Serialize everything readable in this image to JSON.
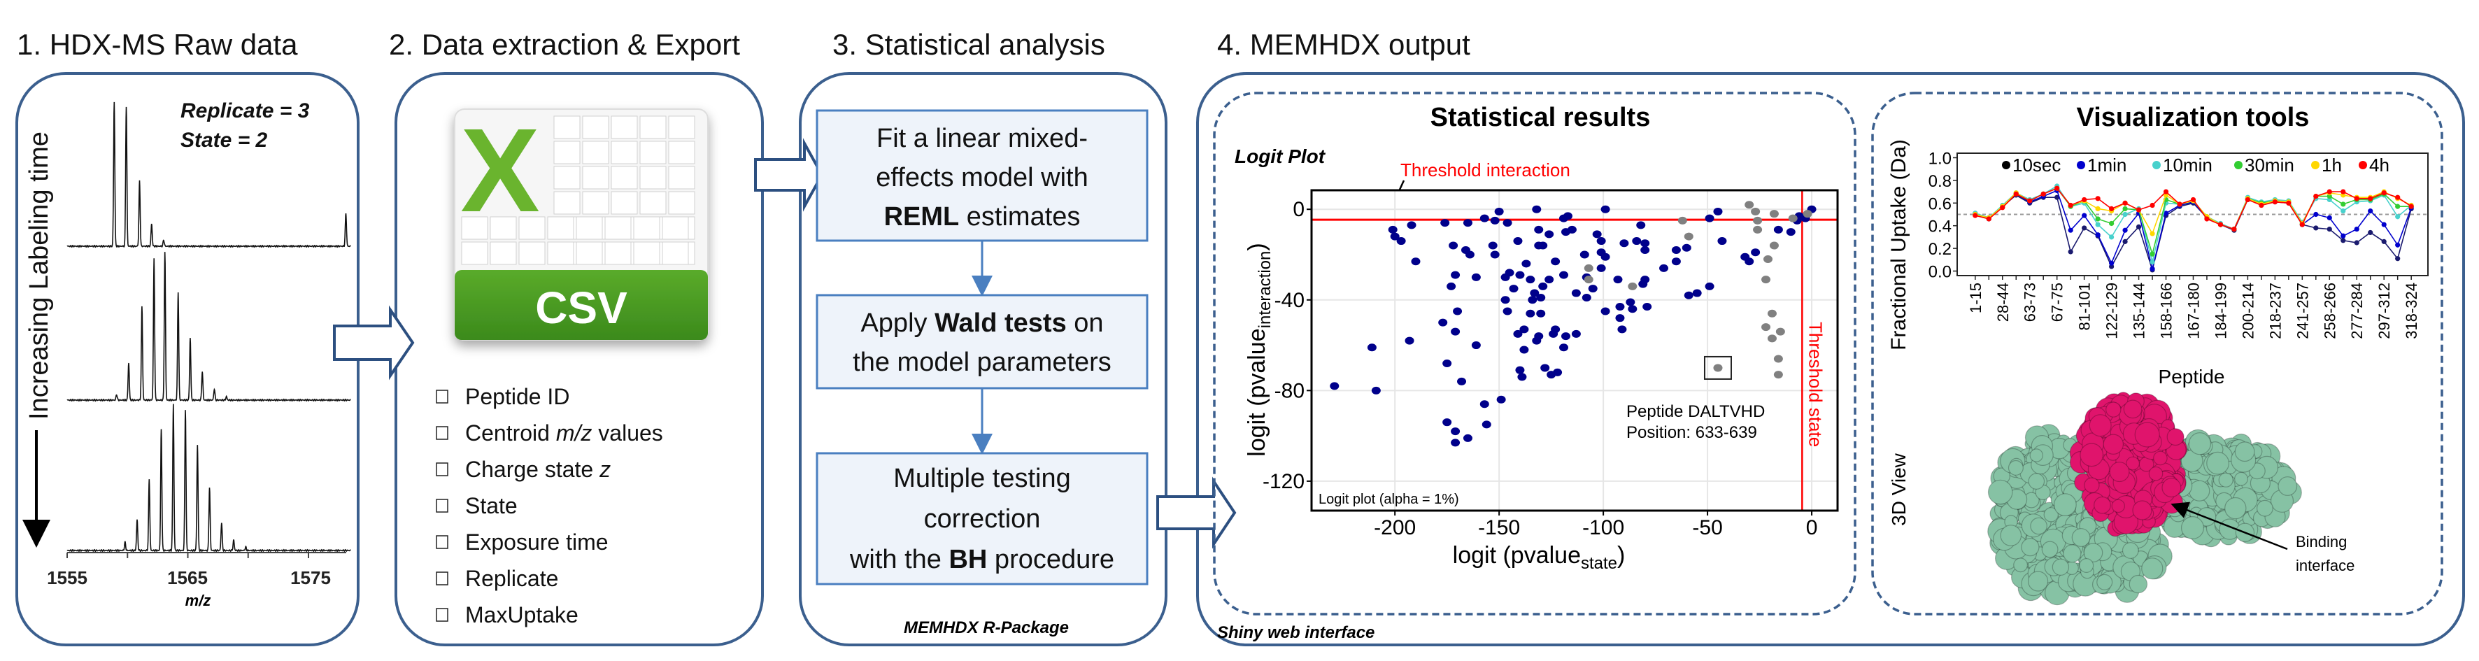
{
  "panel1": {
    "title": "1. HDX-MS Raw data",
    "replicate": "Replicate = 3",
    "state": "State = 2",
    "side_label": "Increasing Labeling time",
    "x_ticks": [
      "1555",
      "1565",
      "1575"
    ],
    "x_label": "m/z"
  },
  "panel2": {
    "title": "2. Data extraction & Export",
    "icon_label": "CSV",
    "icon_letter": "X",
    "items": [
      {
        "text": "Peptide ID"
      },
      {
        "text": "Centroid ",
        "em": "m/z",
        "tail": " values"
      },
      {
        "text": "Charge state ",
        "em": "z"
      },
      {
        "text": "State"
      },
      {
        "text": "Exposure time"
      },
      {
        "text": "Replicate"
      },
      {
        "text": "MaxUptake"
      }
    ]
  },
  "panel3": {
    "title": "3. Statistical analysis",
    "steps": [
      {
        "l1": "Fit a linear mixed-",
        "l2": "effects model with",
        "l3_bold": "REML",
        "l3": " estimates"
      },
      {
        "l1_pre": "Apply ",
        "l1_bold": "Wald tests",
        "l1_post": " on",
        "l2": "the model parameters"
      },
      {
        "l1": "Multiple testing",
        "l2": "correction",
        "l3_pre": "with the ",
        "l3_bold": "BH",
        "l3_post": " procedure"
      }
    ],
    "caption": "MEMHDX R-Package"
  },
  "panel4": {
    "title": "4. MEMHDX output",
    "caption": "Shiny web interface",
    "stats_title": "Statistical results",
    "viz_title": "Visualization tools",
    "view3d_label": "3D View",
    "binding_label_1": "Binding",
    "binding_label_2": "interface",
    "colors": {
      "protein": "#86c2a4",
      "interface": "#e0146c"
    }
  },
  "chart_data": [
    {
      "type": "scatter",
      "title": "Logit Plot",
      "xlabel": "logit (pvalue",
      "xlabel_sub": "state",
      "xlabel_end": ")",
      "ylabel": "logit (pvalue",
      "ylabel_sub": "interaction",
      "ylabel_end": ")",
      "xlim": [
        -240,
        12.4
      ],
      "ylim": [
        -133,
        8.4
      ],
      "x_ticks": [
        -200,
        -150,
        -100,
        -50,
        0
      ],
      "y_ticks": [
        0,
        -40,
        -80,
        -120
      ],
      "grid": true,
      "threshold_interaction": -4.6,
      "threshold_state": -4.6,
      "threshold_interaction_label": "Threshold interaction",
      "threshold_state_label": "Threshold state",
      "threshold_color": "#ff0000",
      "annotation_line1": "Peptide DALTVHD",
      "annotation_line2": "Position: 633-639",
      "annotated_point": [
        -45,
        -70
      ],
      "footnote": "Logit plot (alpha = 1%)",
      "series": [
        {
          "color": "#00008b",
          "points": [
            [
              -201,
              -9
            ],
            [
              -200,
              -12
            ],
            [
              -197,
              -14
            ],
            [
              -192,
              -7
            ],
            [
              -190,
              -23
            ],
            [
              -176,
              -6
            ],
            [
              -165,
              -6
            ],
            [
              -157,
              -4
            ],
            [
              -150,
              -1
            ],
            [
              -152,
              -5
            ],
            [
              -146,
              -6
            ],
            [
              -132,
              0
            ],
            [
              -119,
              -4
            ],
            [
              -117,
              -3
            ],
            [
              -99,
              0
            ],
            [
              -49,
              -4
            ],
            [
              -45,
              -1
            ],
            [
              -172,
              -16
            ],
            [
              -166,
              -18
            ],
            [
              -164,
              -20
            ],
            [
              -153,
              -16
            ],
            [
              -152,
              -20
            ],
            [
              -141,
              -14
            ],
            [
              -131,
              -9
            ],
            [
              -131,
              -16
            ],
            [
              -129,
              -16
            ],
            [
              -126,
              -11
            ],
            [
              -118,
              -10
            ],
            [
              -115,
              -9
            ],
            [
              -109,
              -20
            ],
            [
              -103,
              -11
            ],
            [
              -101,
              -14
            ],
            [
              -101,
              -19
            ],
            [
              -99,
              -21
            ],
            [
              -90,
              -15
            ],
            [
              -84,
              -14
            ],
            [
              -82,
              -7
            ],
            [
              -80,
              -15
            ],
            [
              -80,
              -18
            ],
            [
              -65,
              -18
            ],
            [
              -60,
              -17
            ],
            [
              -43,
              -14
            ],
            [
              -32,
              -21
            ],
            [
              -27,
              -19
            ],
            [
              -30,
              -23
            ],
            [
              -16,
              -9
            ],
            [
              -10,
              -10
            ],
            [
              -7,
              -5
            ],
            [
              -3,
              -4
            ],
            [
              0,
              0
            ],
            [
              -6,
              -3
            ],
            [
              -171,
              -29
            ],
            [
              -173,
              -34
            ],
            [
              -170,
              -45
            ],
            [
              -161,
              -30
            ],
            [
              -147,
              -30
            ],
            [
              -145,
              -28
            ],
            [
              -143,
              -35
            ],
            [
              -140,
              -29
            ],
            [
              -137,
              -24
            ],
            [
              -135,
              -31
            ],
            [
              -133,
              -37
            ],
            [
              -130,
              -39
            ],
            [
              -134,
              -40
            ],
            [
              -129,
              -34
            ],
            [
              -126,
              -31
            ],
            [
              -123,
              -23
            ],
            [
              -119,
              -29
            ],
            [
              -147,
              -40
            ],
            [
              -146,
              -45
            ],
            [
              -135,
              -46
            ],
            [
              -130,
              -46
            ],
            [
              -113,
              -37
            ],
            [
              -108,
              -39
            ],
            [
              -108,
              -30
            ],
            [
              -105,
              -35
            ],
            [
              -101,
              -26
            ],
            [
              -93,
              -31
            ],
            [
              -92,
              -43
            ],
            [
              -87,
              -41
            ],
            [
              -86,
              -44
            ],
            [
              -79,
              -43
            ],
            [
              -80,
              -31
            ],
            [
              -81,
              -33
            ],
            [
              -92,
              -48
            ],
            [
              -91,
              -53
            ],
            [
              -99,
              -45
            ],
            [
              -71,
              -26
            ],
            [
              -65,
              -23
            ],
            [
              -59,
              -38
            ],
            [
              -55,
              -37
            ],
            [
              -49,
              -34
            ],
            [
              -177,
              -50
            ],
            [
              -171,
              -54
            ],
            [
              -193,
              -58
            ],
            [
              -211,
              -61
            ],
            [
              -161,
              -60
            ],
            [
              -141,
              -55
            ],
            [
              -138,
              -53
            ],
            [
              -131,
              -56
            ],
            [
              -132,
              -58
            ],
            [
              -138,
              -62
            ],
            [
              -124,
              -55
            ],
            [
              -123,
              -53
            ],
            [
              -118,
              -56
            ],
            [
              -113,
              -55
            ],
            [
              -119,
              -61
            ],
            [
              -175,
              -68
            ],
            [
              -168,
              -76
            ],
            [
              -140,
              -71
            ],
            [
              -139,
              -74
            ],
            [
              -128,
              -70
            ],
            [
              -125,
              -73
            ],
            [
              -122,
              -72
            ],
            [
              -229,
              -78
            ],
            [
              -209,
              -80
            ],
            [
              -157,
              -86
            ],
            [
              -149,
              -84
            ],
            [
              -175,
              -94
            ],
            [
              -171,
              -98
            ],
            [
              -156,
              -95
            ],
            [
              -171,
              -103
            ],
            [
              -165,
              -101
            ]
          ]
        },
        {
          "color": "#808080",
          "points": [
            [
              -30,
              2
            ],
            [
              -27,
              -1
            ],
            [
              -18,
              -2
            ],
            [
              -26,
              -5
            ],
            [
              -26,
              -9
            ],
            [
              -62,
              -5
            ],
            [
              -59,
              -12
            ],
            [
              -18,
              -16
            ],
            [
              -21,
              -22
            ],
            [
              -22,
              -31
            ],
            [
              -107,
              -26
            ],
            [
              -107,
              -31
            ],
            [
              -86,
              -34
            ],
            [
              -19,
              -46
            ],
            [
              -22,
              -52
            ],
            [
              -15,
              -54
            ],
            [
              -19,
              -57
            ],
            [
              -16,
              -66
            ],
            [
              -16,
              -73
            ],
            [
              -45,
              -70
            ],
            [
              -9,
              -4
            ],
            [
              -2,
              -2
            ]
          ]
        }
      ]
    },
    {
      "type": "line",
      "xlabel": "Peptide",
      "ylabel": "Fractional Uptake (Da)",
      "ylim": [
        -0.04,
        1.04
      ],
      "y_ticks": [
        "0.0",
        "0.2",
        "0.4",
        "0.6",
        "0.8",
        "1.0"
      ],
      "reference_line": 0.5,
      "legend_position": "top",
      "categories": [
        "1-15",
        "",
        "28-44",
        "",
        "63-73",
        "",
        "67-75",
        "",
        "81-101",
        "",
        "122-129",
        "",
        "135-144",
        "",
        "158-166",
        "",
        "167-180",
        "",
        "184-199",
        "",
        "200-214",
        "",
        "218-237",
        "",
        "241-257",
        "",
        "258-266",
        "",
        "277-284",
        "",
        "297-312",
        "",
        "318-324"
      ],
      "series": [
        {
          "name": "10sec",
          "color": "#1a1a6e",
          "legend_color": "#000000",
          "values": [
            0.5,
            0.46,
            0.57,
            0.67,
            0.6,
            0.65,
            0.65,
            0.17,
            0.38,
            0.31,
            0.04,
            0.26,
            0.39,
            0.01,
            0.49,
            0.57,
            0.6,
            0.47,
            0.41,
            0.36,
            0.63,
            0.59,
            0.61,
            0.6,
            0.41,
            0.38,
            0.37,
            0.27,
            0.25,
            0.34,
            0.26,
            0.11,
            0.55
          ]
        },
        {
          "name": "1min",
          "color": "#0000cd",
          "legend_color": "#0000cd",
          "values": [
            0.51,
            0.47,
            0.57,
            0.68,
            0.61,
            0.66,
            0.71,
            0.36,
            0.49,
            0.32,
            0.07,
            0.36,
            0.51,
            0.02,
            0.51,
            0.58,
            0.61,
            0.47,
            0.41,
            0.37,
            0.64,
            0.6,
            0.62,
            0.61,
            0.41,
            0.5,
            0.47,
            0.31,
            0.37,
            0.53,
            0.41,
            0.23,
            0.56
          ]
        },
        {
          "name": "10min",
          "color": "#48d1cc",
          "legend_color": "#48d1cc",
          "values": [
            0.51,
            0.47,
            0.58,
            0.69,
            0.63,
            0.68,
            0.75,
            0.57,
            0.6,
            0.41,
            0.3,
            0.5,
            0.55,
            0.08,
            0.6,
            0.59,
            0.62,
            0.48,
            0.42,
            0.37,
            0.65,
            0.61,
            0.63,
            0.62,
            0.43,
            0.64,
            0.63,
            0.53,
            0.61,
            0.62,
            0.67,
            0.48,
            0.58
          ]
        },
        {
          "name": "30min",
          "color": "#32cd32",
          "legend_color": "#32cd32",
          "values": [
            0.5,
            0.47,
            0.57,
            0.68,
            0.62,
            0.68,
            0.73,
            0.57,
            0.62,
            0.46,
            0.42,
            0.55,
            0.54,
            0.15,
            0.63,
            0.59,
            0.62,
            0.48,
            0.41,
            0.37,
            0.64,
            0.6,
            0.62,
            0.61,
            0.42,
            0.66,
            0.66,
            0.59,
            0.63,
            0.63,
            0.68,
            0.57,
            0.57
          ]
        },
        {
          "name": "1h",
          "color": "#ffd700",
          "legend_color": "#ffd700",
          "values": [
            0.5,
            0.47,
            0.57,
            0.69,
            0.62,
            0.68,
            0.73,
            0.58,
            0.62,
            0.55,
            0.53,
            0.6,
            0.54,
            0.33,
            0.67,
            0.59,
            0.62,
            0.48,
            0.41,
            0.37,
            0.64,
            0.59,
            0.62,
            0.61,
            0.42,
            0.66,
            0.69,
            0.67,
            0.65,
            0.65,
            0.7,
            0.64,
            0.58
          ]
        },
        {
          "name": "4h",
          "color": "#ff0000",
          "legend_color": "#ff0000",
          "values": [
            0.49,
            0.46,
            0.56,
            0.68,
            0.62,
            0.68,
            0.73,
            0.58,
            0.63,
            0.64,
            0.55,
            0.6,
            0.54,
            0.58,
            0.7,
            0.59,
            0.63,
            0.46,
            0.41,
            0.37,
            0.63,
            0.58,
            0.61,
            0.6,
            0.41,
            0.66,
            0.7,
            0.7,
            0.64,
            0.64,
            0.69,
            0.65,
            0.57
          ]
        }
      ]
    }
  ]
}
